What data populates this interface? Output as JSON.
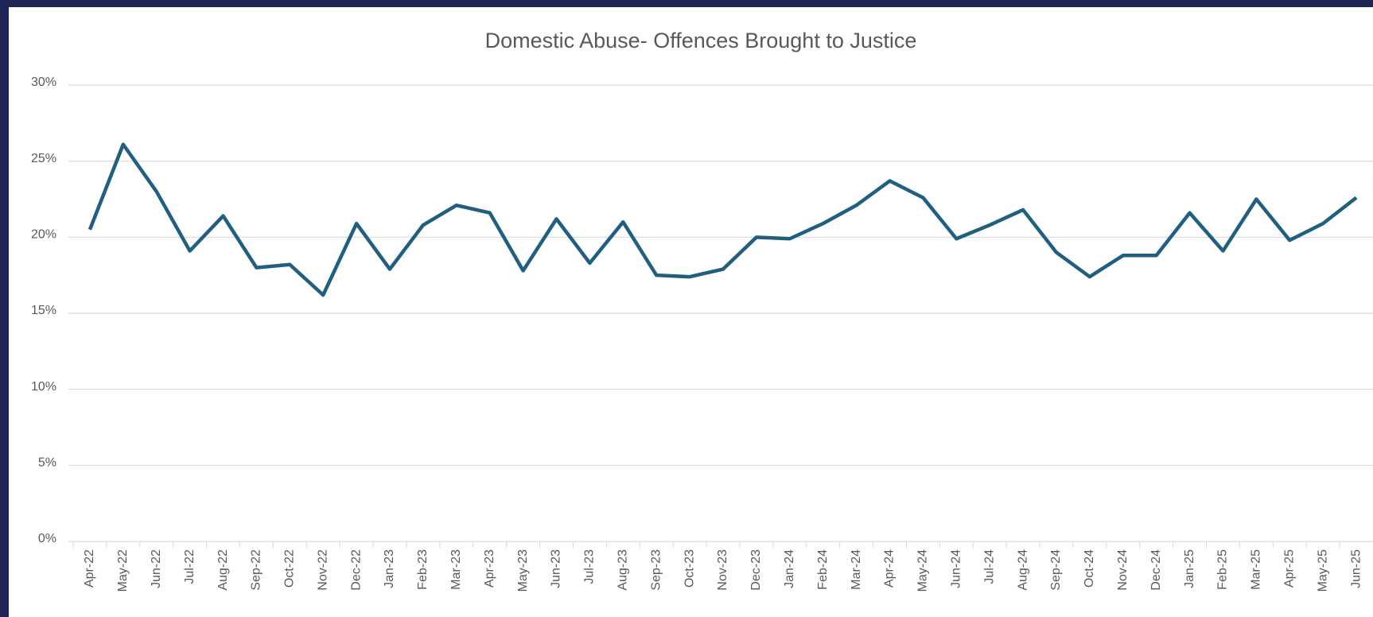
{
  "chart_data": {
    "type": "line",
    "title": "Domestic Abuse- Offences Brought to Justice",
    "categories": [
      "Apr-22",
      "May-22",
      "Jun-22",
      "Jul-22",
      "Aug-22",
      "Sep-22",
      "Oct-22",
      "Nov-22",
      "Dec-22",
      "Jan-23",
      "Feb-23",
      "Mar-23",
      "Apr-23",
      "May-23",
      "Jun-23",
      "Jul-23",
      "Aug-23",
      "Sep-23",
      "Oct-23",
      "Nov-23",
      "Dec-23",
      "Jan-24",
      "Feb-24",
      "Mar-24",
      "Apr-24",
      "May-24",
      "Jun-24",
      "Jul-24",
      "Aug-24",
      "Sep-24",
      "Oct-24",
      "Nov-24",
      "Dec-24",
      "Jan-25",
      "Feb-25",
      "Mar-25",
      "Apr-25",
      "May-25",
      "Jun-25"
    ],
    "series": [
      {
        "name": "Domestic Abuse- Offences Brought to Justice",
        "color": "#215f80",
        "values": [
          20.5,
          26.1,
          23.0,
          19.1,
          21.4,
          18.0,
          18.2,
          16.2,
          20.9,
          17.9,
          20.8,
          22.1,
          21.6,
          17.8,
          21.2,
          18.3,
          21.0,
          17.5,
          17.4,
          17.9,
          20.0,
          19.9,
          20.9,
          22.1,
          23.7,
          22.6,
          19.9,
          20.8,
          21.8,
          19.0,
          17.4,
          18.8,
          18.8,
          21.6,
          19.1,
          22.5,
          19.8,
          20.9,
          22.6
        ]
      }
    ],
    "ylim": [
      0,
      30
    ],
    "yticks": [
      {
        "value": 0,
        "label": "0%"
      },
      {
        "value": 5,
        "label": "5%"
      },
      {
        "value": 10,
        "label": "10%"
      },
      {
        "value": 15,
        "label": "15%"
      },
      {
        "value": 20,
        "label": "20%"
      },
      {
        "value": 25,
        "label": "25%"
      },
      {
        "value": 30,
        "label": "30%"
      }
    ],
    "grid": true
  }
}
